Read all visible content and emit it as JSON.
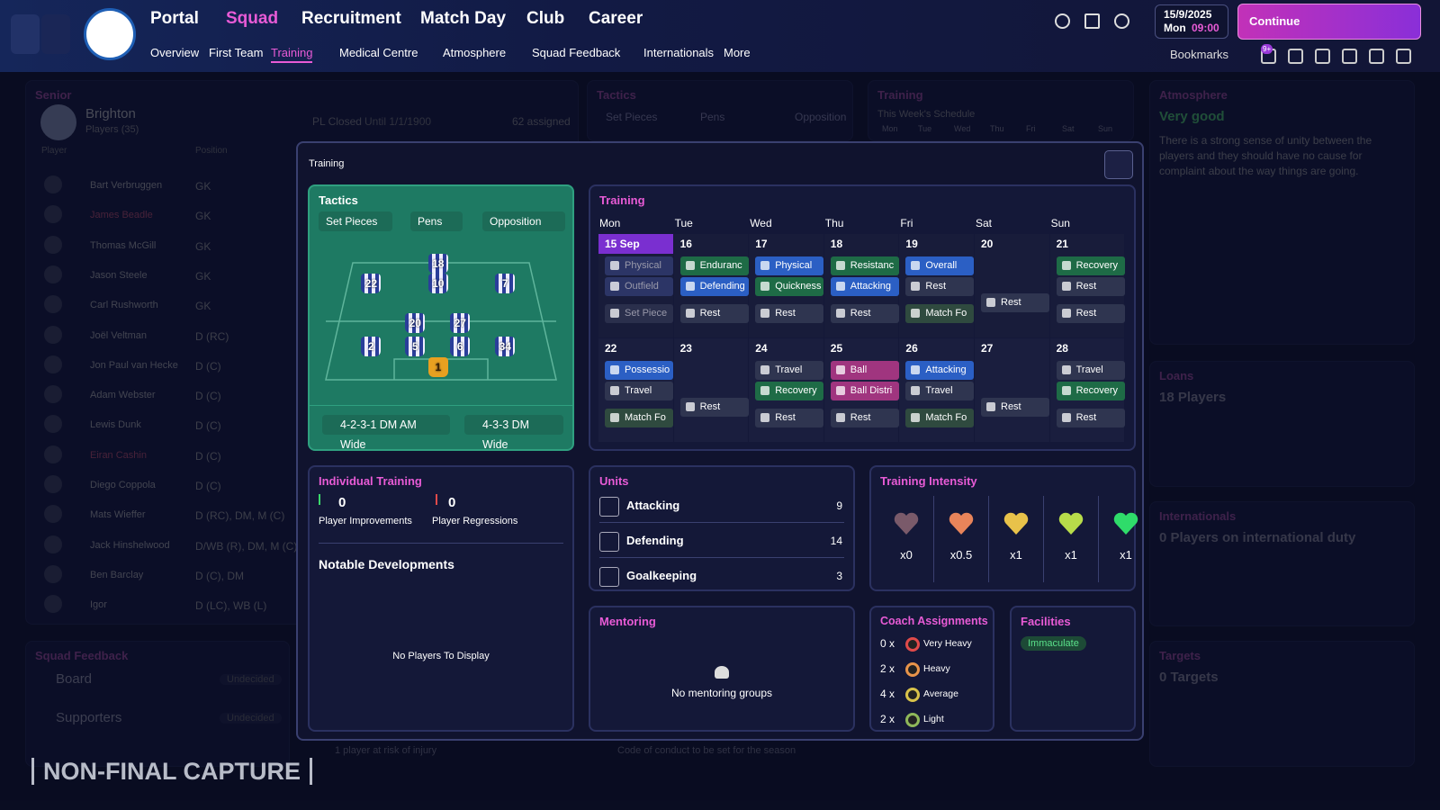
{
  "nav": {
    "menus": [
      "Portal",
      "Squad",
      "Recruitment",
      "Match Day",
      "Club",
      "Career"
    ],
    "submenu": [
      "Overview",
      "First Team",
      "Training",
      "Medical Centre",
      "Atmosphere",
      "Squad Feedback",
      "Internationals",
      "More"
    ],
    "date": "15/9/2025",
    "day": "Mon",
    "time": "09:00",
    "continue": "Continue",
    "bookmarks": "Bookmarks",
    "badge": "9+"
  },
  "background": {
    "senior": {
      "title": "Senior",
      "club": "Brighton",
      "players": "Players (35)",
      "col_player": "Player",
      "col_position": "Position",
      "status": "PL Closed",
      "until": "Until 1/1/1900",
      "assigned": "62 assigned",
      "rows": [
        [
          "Bart Verbruggen",
          "GK"
        ],
        [
          "James Beadle",
          "GK"
        ],
        [
          "Thomas McGill",
          "GK"
        ],
        [
          "Jason Steele",
          "GK"
        ],
        [
          "Carl Rushworth",
          "GK"
        ],
        [
          "Joël Veltman",
          "D (RC)"
        ],
        [
          "Jon Paul van Hecke",
          "D (C)"
        ],
        [
          "Adam Webster",
          "D (C)"
        ],
        [
          "Lewis Dunk",
          "D (C)"
        ],
        [
          "Eiran Cashin",
          "D (C)"
        ],
        [
          "Diego Coppola",
          "D (C)"
        ],
        [
          "Mats Wieffer",
          "D (RC), DM, M (C)"
        ],
        [
          "Jack Hinshelwood",
          "D/WB (R), DM, M (C)"
        ],
        [
          "Ben Barclay",
          "D (C), DM"
        ],
        [
          "Igor",
          "D (LC), WB (L)"
        ]
      ]
    },
    "tactics": {
      "title": "Tactics",
      "buttons": [
        "Set Pieces",
        "Pens",
        "Opposition"
      ]
    },
    "training": {
      "title": "Training",
      "subtitle": "This Week's Schedule",
      "days": [
        "Mon",
        "Tue",
        "Wed",
        "Thu",
        "Fri",
        "Sat",
        "Sun"
      ]
    },
    "atmosphere": {
      "title": "Atmosphere",
      "rating": "Very good",
      "text": "There is a strong sense of unity between the players and they should have no cause for complaint about the way things are going."
    },
    "loans": {
      "title": "Loans",
      "value": "18 Players"
    },
    "internationals": {
      "title": "Internationals",
      "value": "0 Players on international duty"
    },
    "targets": {
      "title": "Targets",
      "value": "0 Targets"
    },
    "squad_feedback": {
      "title": "Squad Feedback",
      "rows": [
        [
          "Board",
          "Undecided"
        ],
        [
          "Supporters",
          "Undecided"
        ]
      ]
    },
    "notes": [
      "1 player at risk of injury",
      "Code of conduct to be set for the season"
    ]
  },
  "watermark": "NON-FINAL CAPTURE",
  "modal": {
    "title": "Training",
    "tactics": {
      "title": "Tactics",
      "buttons": [
        "Set Pieces",
        "Pens",
        "Opposition"
      ],
      "players": [
        "22",
        "18",
        "10",
        "7",
        "20",
        "27",
        "2",
        "5",
        "6",
        "34",
        "1"
      ],
      "formations": [
        "4-2-3-1 DM AM Wide",
        "4-3-3 DM Wide"
      ]
    },
    "schedule": {
      "title": "Training",
      "days": [
        "Mon",
        "Tue",
        "Wed",
        "Thu",
        "Fri",
        "Sat",
        "Sun"
      ],
      "weeks": [
        [
          {
            "date": "15 Sep",
            "sessions": [
              {
                "label": "Physical",
                "color": "#2c3566"
              },
              {
                "label": "Outfield",
                "color": "#2c3566"
              },
              {
                "label": "Set Piece",
                "color": "#2a2f4c"
              }
            ]
          },
          {
            "date": "16",
            "sessions": [
              {
                "label": "Enduranc",
                "color": "#1e6b46"
              },
              {
                "label": "Defending",
                "color": "#2b5fc4"
              },
              {
                "label": "Rest",
                "color": "#2f3550"
              }
            ]
          },
          {
            "date": "17",
            "sessions": [
              {
                "label": "Physical",
                "color": "#2b5fc4"
              },
              {
                "label": "Quickness",
                "color": "#1e6b46"
              },
              {
                "label": "Rest",
                "color": "#2f3550"
              }
            ]
          },
          {
            "date": "18",
            "sessions": [
              {
                "label": "Resistanc",
                "color": "#1e6b46"
              },
              {
                "label": "Attacking",
                "color": "#2b5fc4"
              },
              {
                "label": "Rest",
                "color": "#2f3550"
              }
            ]
          },
          {
            "date": "19",
            "sessions": [
              {
                "label": "Overall",
                "color": "#2b5fc4"
              },
              {
                "label": "Rest",
                "color": "#2f3550"
              },
              {
                "label": "Match Fo",
                "color": "#2f4a3f"
              }
            ]
          },
          {
            "date": "20",
            "sessions": [
              {
                "label": "Rest",
                "color": "#2f3550"
              }
            ]
          },
          {
            "date": "21",
            "sessions": [
              {
                "label": "Recovery",
                "color": "#1e6b46"
              },
              {
                "label": "Rest",
                "color": "#2f3550"
              },
              {
                "label": "Rest",
                "color": "#2f3550"
              }
            ]
          }
        ],
        [
          {
            "date": "22",
            "sessions": [
              {
                "label": "Possessio",
                "color": "#2b5fc4"
              },
              {
                "label": "Travel",
                "color": "#2f3550"
              },
              {
                "label": "Match Fo",
                "color": "#2f4a3f"
              }
            ]
          },
          {
            "date": "23",
            "sessions": [
              {
                "label": "Rest",
                "color": "#2f3550"
              }
            ]
          },
          {
            "date": "24",
            "sessions": [
              {
                "label": "Travel",
                "color": "#2f3550"
              },
              {
                "label": "Recovery",
                "color": "#1e6b46"
              },
              {
                "label": "Rest",
                "color": "#2f3550"
              }
            ]
          },
          {
            "date": "25",
            "sessions": [
              {
                "label": "Ball Reten",
                "color": "#a0357f"
              },
              {
                "label": "Ball Distri",
                "color": "#a0357f"
              },
              {
                "label": "Rest",
                "color": "#2f3550"
              }
            ]
          },
          {
            "date": "26",
            "sessions": [
              {
                "label": "Attacking",
                "color": "#2b5fc4"
              },
              {
                "label": "Travel",
                "color": "#2f3550"
              },
              {
                "label": "Match Fo",
                "color": "#2f4a3f"
              }
            ]
          },
          {
            "date": "27",
            "sessions": [
              {
                "label": "Rest",
                "color": "#2f3550"
              }
            ]
          },
          {
            "date": "28",
            "sessions": [
              {
                "label": "Travel",
                "color": "#2f3550"
              },
              {
                "label": "Recovery",
                "color": "#1e6b46"
              },
              {
                "label": "Rest",
                "color": "#2f3550"
              }
            ]
          }
        ]
      ]
    },
    "individual": {
      "title": "Individual Training",
      "improvements": 0,
      "improvements_label": "Player Improvements",
      "regressions": 0,
      "regressions_label": "Player Regressions",
      "notable": "Notable Developments",
      "empty": "No Players To Display"
    },
    "units": {
      "title": "Units",
      "rows": [
        {
          "name": "Attacking",
          "value": 9
        },
        {
          "name": "Defending",
          "value": 14
        },
        {
          "name": "Goalkeeping",
          "value": 3
        }
      ]
    },
    "intensity": {
      "title": "Training Intensity",
      "levels": [
        {
          "label": "x0",
          "color": "#7a5a6a"
        },
        {
          "label": "x0.5",
          "color": "#e8845a"
        },
        {
          "label": "x1",
          "color": "#e8c24a"
        },
        {
          "label": "x1",
          "color": "#b8dc4a"
        },
        {
          "label": "x1",
          "color": "#2fdc6a"
        }
      ]
    },
    "mentoring": {
      "title": "Mentoring",
      "empty": "No mentoring groups"
    },
    "coach": {
      "title": "Coach Assignments",
      "rows": [
        {
          "count": "0 x",
          "level": "Very Heavy",
          "color": "#e04a4a"
        },
        {
          "count": "2 x",
          "level": "Heavy",
          "color": "#e8944a"
        },
        {
          "count": "4 x",
          "level": "Average",
          "color": "#d8c24a"
        },
        {
          "count": "2 x",
          "level": "Light",
          "color": "#8fb85a"
        }
      ]
    },
    "facilities": {
      "title": "Facilities",
      "rating": "Immaculate"
    }
  }
}
